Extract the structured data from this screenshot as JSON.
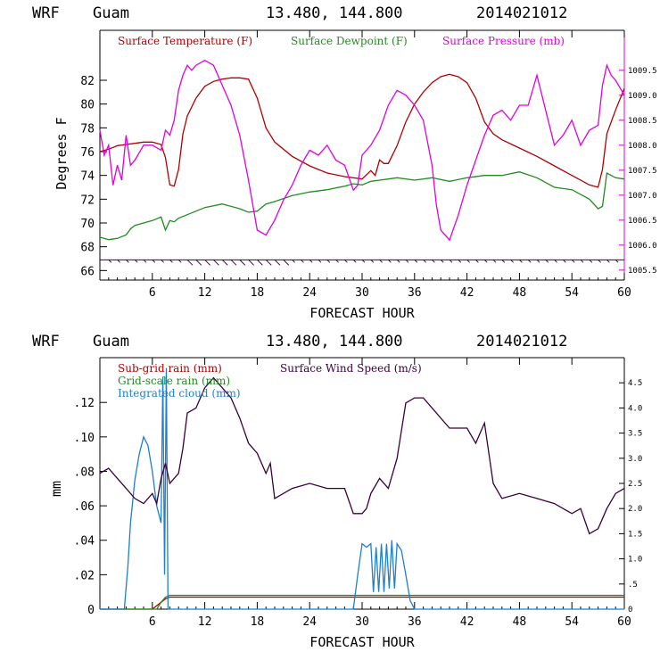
{
  "chart_data": [
    {
      "type": "line",
      "header": {
        "model": "WRF",
        "location": "Guam",
        "coords": "13.480, 144.800",
        "init": "2014021012"
      },
      "xlabel": "FORECAST HOUR",
      "xlim": [
        0,
        60
      ],
      "xticks": [
        6,
        12,
        18,
        24,
        30,
        36,
        42,
        48,
        54,
        60
      ],
      "ylabel": "Degrees F",
      "ylim": [
        65.2,
        86.2
      ],
      "yticks": [
        66,
        68,
        70,
        72,
        74,
        76,
        78,
        80,
        82
      ],
      "y2lim": [
        1005.3,
        1010.3
      ],
      "y2ticks": [
        "1005.5",
        "1006.0",
        "1006.5",
        "1007.0",
        "1007.5",
        "1008.0",
        "1008.5",
        "1009.0",
        "1009.5"
      ],
      "colors": {
        "temperature": "#b00000",
        "dewpoint": "#228b22",
        "pressure": "#e000e0",
        "wind": "#3a003a"
      },
      "series": [
        {
          "name": "Surface Temperature (F)",
          "axis": "left",
          "x": [
            0,
            1,
            2,
            3,
            4,
            5,
            6,
            7,
            7.5,
            8,
            8.5,
            9,
            9.5,
            10,
            11,
            12,
            13,
            14,
            15,
            16,
            17,
            18,
            19,
            20,
            22,
            24,
            26,
            28,
            30,
            31,
            31.5,
            32,
            32.5,
            33,
            34,
            35,
            36,
            37,
            38,
            39,
            40,
            41,
            42,
            43,
            44,
            45,
            46,
            48,
            50,
            52,
            54,
            56,
            57,
            57.5,
            58,
            59,
            60
          ],
          "y": [
            76.0,
            76.2,
            76.5,
            76.6,
            76.7,
            76.8,
            76.8,
            76.6,
            75.5,
            73.2,
            73.1,
            74.5,
            77.5,
            79.0,
            80.5,
            81.5,
            81.9,
            82.1,
            82.2,
            82.2,
            82.1,
            80.5,
            78.0,
            76.8,
            75.6,
            74.8,
            74.2,
            73.9,
            73.7,
            74.4,
            74.0,
            75.3,
            75.0,
            75.0,
            76.5,
            78.5,
            80.0,
            81.0,
            81.8,
            82.3,
            82.5,
            82.3,
            81.8,
            80.5,
            78.5,
            77.5,
            77.0,
            76.3,
            75.6,
            74.8,
            74.0,
            73.2,
            73.0,
            74.5,
            77.5,
            79.5,
            81.3
          ]
        },
        {
          "name": "Surface Dewpoint (F)",
          "axis": "left",
          "x": [
            0,
            1,
            2,
            3,
            3.5,
            4,
            6,
            7,
            7.5,
            8,
            8.5,
            9,
            10,
            12,
            14,
            16,
            17,
            18,
            19,
            20,
            22,
            24,
            26,
            28,
            29,
            30,
            31,
            32,
            33,
            34,
            36,
            38,
            40,
            42,
            44,
            46,
            48,
            50,
            52,
            54,
            56,
            57,
            57.5,
            58,
            59,
            60
          ],
          "y": [
            68.8,
            68.6,
            68.7,
            69.0,
            69.5,
            69.8,
            70.2,
            70.5,
            69.4,
            70.2,
            70.1,
            70.4,
            70.7,
            71.3,
            71.6,
            71.2,
            70.9,
            71.0,
            71.6,
            71.8,
            72.3,
            72.6,
            72.8,
            73.1,
            73.3,
            73.2,
            73.5,
            73.6,
            73.7,
            73.8,
            73.6,
            73.8,
            73.5,
            73.8,
            74.0,
            74.0,
            74.3,
            73.8,
            73.0,
            72.8,
            72.0,
            71.2,
            71.4,
            74.2,
            73.8,
            73.7
          ]
        },
        {
          "name": "Surface Pressure (mb)",
          "axis": "right",
          "x": [
            0,
            0.5,
            1,
            1.5,
            2,
            2.5,
            3,
            3.5,
            4,
            5,
            6,
            7,
            7.5,
            8,
            8.5,
            9,
            9.5,
            10,
            10.5,
            11,
            12,
            13,
            14,
            15,
            16,
            17,
            18,
            19,
            20,
            21,
            22,
            23,
            24,
            25,
            26,
            27,
            28,
            29,
            29.5,
            30,
            31,
            32,
            33,
            34,
            35,
            36,
            37,
            38,
            38.5,
            39,
            39.5,
            40,
            41,
            42,
            43,
            44,
            45,
            46,
            47,
            48,
            49,
            50,
            51,
            52,
            53,
            54,
            55,
            56,
            57,
            57.5,
            58,
            58.5,
            59,
            60
          ],
          "y": [
            1008.3,
            1007.8,
            1008.0,
            1007.2,
            1007.6,
            1007.3,
            1008.2,
            1007.6,
            1007.7,
            1008.0,
            1008.0,
            1007.9,
            1008.3,
            1008.2,
            1008.5,
            1009.1,
            1009.4,
            1009.6,
            1009.5,
            1009.6,
            1009.7,
            1009.6,
            1009.2,
            1008.8,
            1008.2,
            1007.3,
            1006.3,
            1006.2,
            1006.5,
            1006.9,
            1007.2,
            1007.6,
            1007.9,
            1007.8,
            1008.0,
            1007.7,
            1007.6,
            1007.1,
            1007.2,
            1007.8,
            1008.0,
            1008.3,
            1008.8,
            1009.1,
            1009.0,
            1008.8,
            1008.5,
            1007.6,
            1006.8,
            1006.3,
            1006.2,
            1006.1,
            1006.6,
            1007.2,
            1007.7,
            1008.2,
            1008.6,
            1008.7,
            1008.5,
            1008.8,
            1008.8,
            1009.4,
            1008.7,
            1008.0,
            1008.2,
            1008.5,
            1008.0,
            1008.3,
            1008.4,
            1009.2,
            1009.6,
            1009.4,
            1009.3,
            1009.0
          ]
        },
        {
          "name": "Surface Wind Barbs",
          "axis": "left",
          "show_legend": false,
          "x": [
            0,
            10,
            20,
            30,
            40,
            50,
            60
          ],
          "y": [
            66.9,
            66.9,
            66.9,
            66.9,
            66.9,
            66.9,
            66.9
          ]
        }
      ]
    },
    {
      "type": "line",
      "header": {
        "model": "WRF",
        "location": "Guam",
        "coords": "13.480, 144.800",
        "init": "2014021012"
      },
      "xlabel": "FORECAST HOUR",
      "xlim": [
        0,
        60
      ],
      "xticks": [
        6,
        12,
        18,
        24,
        30,
        36,
        42,
        48,
        54,
        60
      ],
      "ylabel": "mm",
      "ylim": [
        0,
        0.146
      ],
      "yticks": [
        "0",
        ".02",
        ".04",
        ".06",
        ".08",
        ".10",
        ".12"
      ],
      "ytick_values": [
        0,
        0.02,
        0.04,
        0.06,
        0.08,
        0.1,
        0.12
      ],
      "y2lim": [
        0,
        5.0
      ],
      "y2ticks": [
        "0",
        ".5",
        "1.0",
        "1.5",
        "2.0",
        "2.5",
        "3.0",
        "3.5",
        "4.0",
        "4.5"
      ],
      "y2tick_values": [
        0,
        0.5,
        1.0,
        1.5,
        2.0,
        2.5,
        3.0,
        3.5,
        4.0,
        4.5
      ],
      "colors": {
        "subgrid": "#b00000",
        "gridscale": "#228b22",
        "cloud": "#1e7fd0",
        "wind": "#3a003a"
      },
      "series": [
        {
          "name": "Sub-grid rain (mm)",
          "axis": "left",
          "x": [
            0,
            6,
            6.5,
            7,
            7.5,
            8,
            60
          ],
          "y": [
            0,
            0,
            0.002,
            0.004,
            0.006,
            0.007,
            0.007
          ]
        },
        {
          "name": "Grid-scale rain (mm)",
          "axis": "left",
          "x": [
            0,
            6.5,
            7,
            7.5,
            8,
            60
          ],
          "y": [
            0,
            0,
            0.004,
            0.007,
            0.008,
            0.008
          ]
        },
        {
          "name": "Integrated cloud (mm)",
          "axis": "left",
          "x": [
            0,
            2.8,
            3.2,
            3.5,
            4,
            4.5,
            5,
            5.5,
            6,
            6.5,
            7,
            7.2,
            7.4,
            7.6,
            7.8,
            8.0,
            8.2,
            29,
            29.5,
            30,
            30.5,
            31,
            31.3,
            31.6,
            31.9,
            32.2,
            32.5,
            32.8,
            33.1,
            33.4,
            33.7,
            34,
            34.5,
            35,
            35.5,
            36,
            60
          ],
          "y": [
            0,
            0,
            0.025,
            0.05,
            0.075,
            0.09,
            0.1,
            0.095,
            0.08,
            0.06,
            0.05,
            0.135,
            0.02,
            0.14,
            0.0,
            0,
            0,
            0,
            0.02,
            0.038,
            0.036,
            0.038,
            0.01,
            0.036,
            0.01,
            0.038,
            0.01,
            0.038,
            0.012,
            0.04,
            0.012,
            0.038,
            0.034,
            0.02,
            0.005,
            0,
            0
          ]
        },
        {
          "name": "Surface Wind Speed (m/s)",
          "axis": "right",
          "x": [
            0,
            1,
            2,
            3,
            4,
            5,
            6,
            6.5,
            7,
            7.5,
            8,
            9,
            9.5,
            10,
            11,
            12,
            13,
            14,
            15,
            16,
            17,
            18,
            19,
            19.5,
            20,
            22,
            24,
            26,
            28,
            29,
            30,
            30.5,
            31,
            32,
            33,
            34,
            35,
            36,
            37,
            38,
            40,
            42,
            43,
            44,
            45,
            46,
            48,
            50,
            52,
            54,
            55,
            56,
            57,
            58,
            59,
            60
          ],
          "y": [
            2.7,
            2.8,
            2.6,
            2.4,
            2.2,
            2.1,
            2.3,
            2.1,
            2.6,
            2.9,
            2.5,
            2.7,
            3.2,
            3.9,
            4.0,
            4.4,
            4.6,
            4.4,
            4.2,
            3.8,
            3.3,
            3.1,
            2.7,
            2.9,
            2.2,
            2.4,
            2.5,
            2.4,
            2.4,
            1.9,
            1.9,
            2.0,
            2.3,
            2.6,
            2.4,
            3.0,
            4.1,
            4.2,
            4.2,
            4.0,
            3.6,
            3.6,
            3.3,
            3.7,
            2.5,
            2.2,
            2.3,
            2.2,
            2.1,
            1.9,
            2.0,
            1.5,
            1.6,
            2.0,
            2.3,
            2.4
          ]
        }
      ]
    }
  ]
}
